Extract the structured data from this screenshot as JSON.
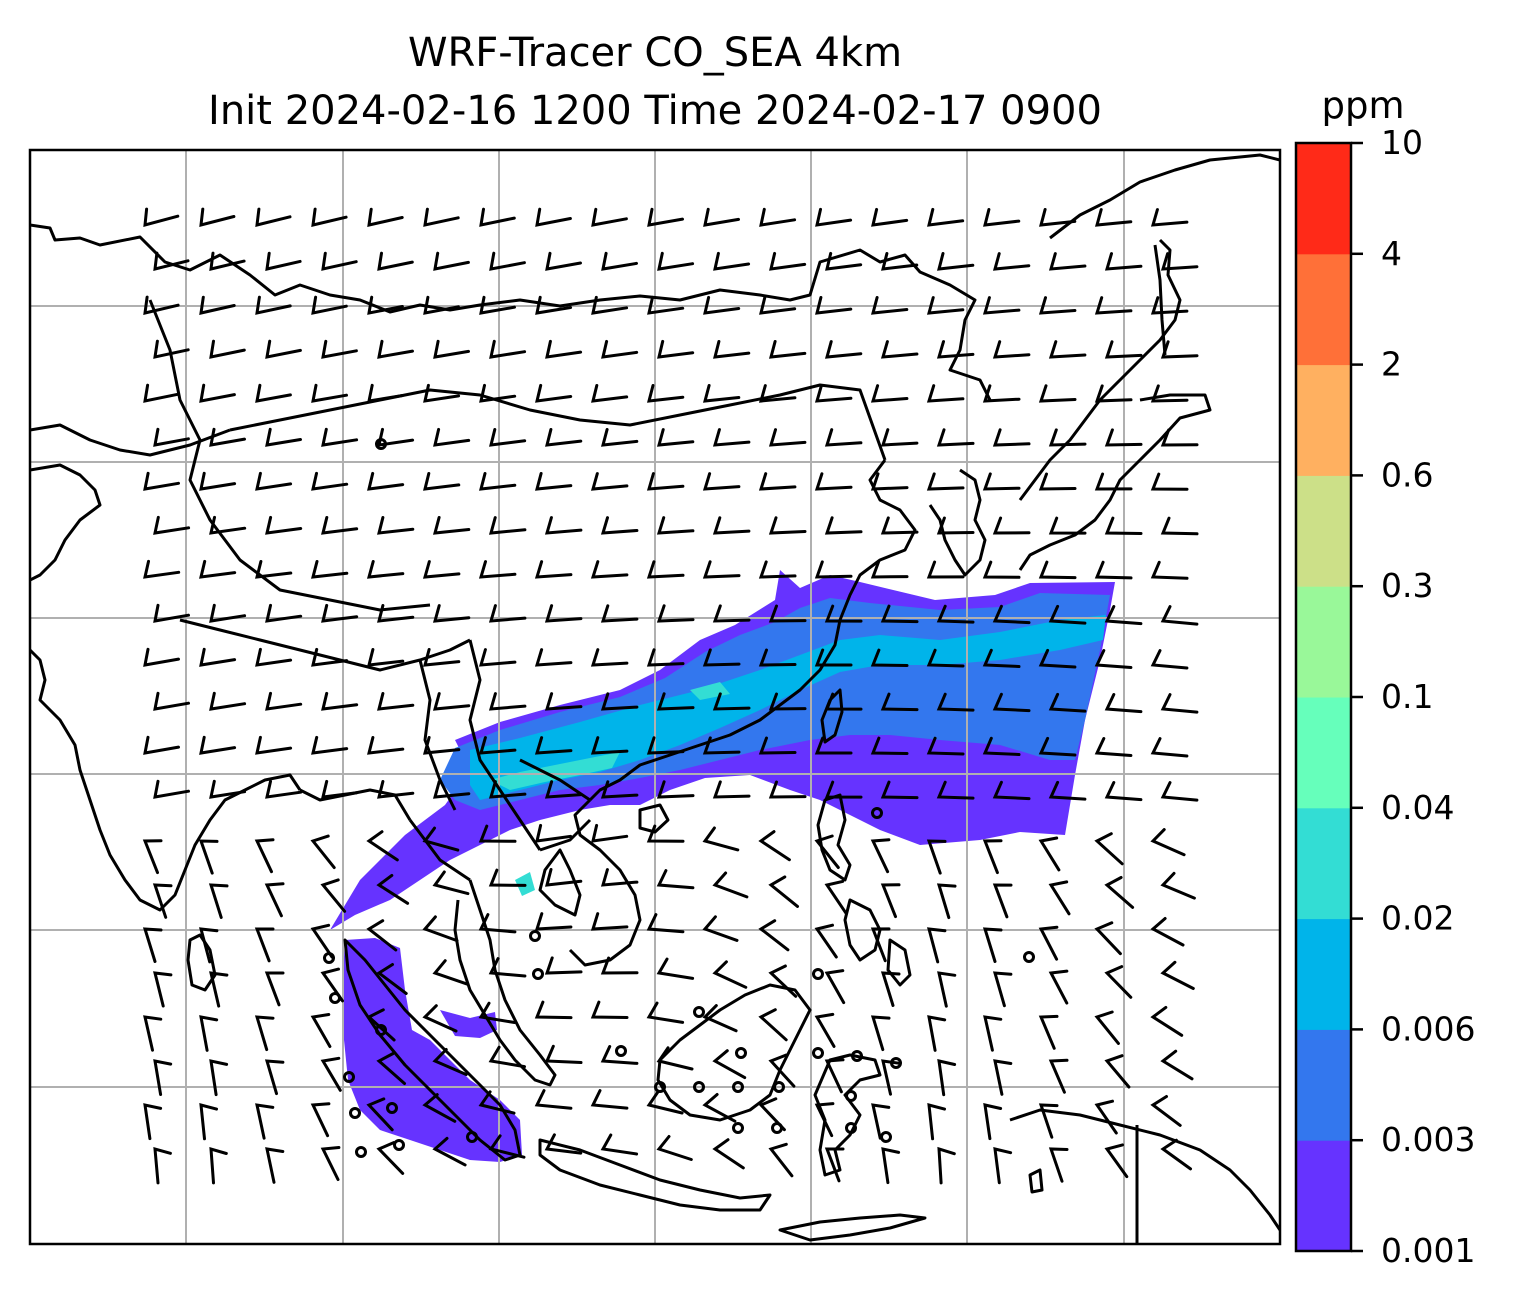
{
  "title": {
    "line1": "WRF-Tracer CO_SEA 4km",
    "line2": "Init 2024-02-16 1200 Time 2024-02-17 0900"
  },
  "map": {
    "type": "filled-contour map with wind barbs",
    "gridlines": true,
    "coastlines": true,
    "country_borders": true,
    "wind_barbs": true
  },
  "colorbar": {
    "label": "ppm",
    "placement": "right",
    "levels": [
      "0.001",
      "0.003",
      "0.006",
      "0.02",
      "0.04",
      "0.1",
      "0.3",
      "0.6",
      "2",
      "4",
      "10"
    ],
    "colors": [
      "#6633ff",
      "#3377ee",
      "#00b4ea",
      "#33ddd4",
      "#66ffbb",
      "#99f899",
      "#cce088",
      "#ffb060",
      "#ff7038",
      "#ff2a18"
    ]
  }
}
